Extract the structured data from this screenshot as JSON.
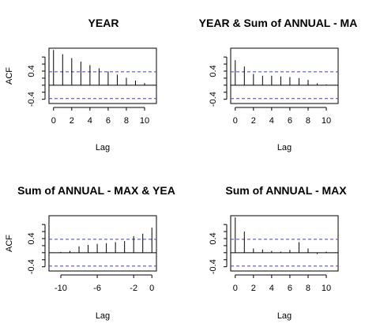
{
  "chart_data": [
    {
      "type": "bar",
      "title": "YEAR",
      "xlabel": "Lag",
      "ylabel": "ACF",
      "x_ticks": [
        "0",
        "2",
        "4",
        "6",
        "8",
        "10"
      ],
      "y_ticks": [
        "-0.4",
        "0.4"
      ],
      "xlim": [
        -0.5,
        11.3
      ],
      "ylim": [
        -0.52,
        1.05
      ],
      "confidence_bounds": [
        0.38,
        -0.38
      ],
      "lags": [
        0,
        1,
        2,
        3,
        4,
        5,
        6,
        7,
        8,
        9,
        10,
        11
      ],
      "values": [
        1.0,
        0.88,
        0.77,
        0.67,
        0.57,
        0.48,
        0.39,
        0.3,
        0.21,
        0.13,
        0.06,
        0.01
      ]
    },
    {
      "type": "bar",
      "title": "YEAR & Sum of ANNUAL - MA",
      "xlabel": "Lag",
      "ylabel": "",
      "x_ticks": [
        "0",
        "2",
        "4",
        "6",
        "8",
        "10"
      ],
      "y_ticks": [
        "-0.4",
        "0.4"
      ],
      "xlim": [
        -0.5,
        11.3
      ],
      "ylim": [
        -0.52,
        1.05
      ],
      "confidence_bounds": [
        0.38,
        -0.38
      ],
      "lags": [
        0,
        1,
        2,
        3,
        4,
        5,
        6,
        7,
        8,
        9,
        10,
        11
      ],
      "values": [
        0.71,
        0.53,
        0.32,
        0.27,
        0.27,
        0.25,
        0.23,
        0.2,
        0.15,
        0.05,
        0.02,
        0.01
      ]
    },
    {
      "type": "bar",
      "title": "Sum of ANNUAL - MAX & YEA",
      "xlabel": "Lag",
      "ylabel": "ACF",
      "x_ticks": [
        "-10",
        "-6",
        "-2",
        "0"
      ],
      "y_ticks": [
        "-0.4",
        "0.4"
      ],
      "xlim": [
        -11.3,
        0.5
      ],
      "ylim": [
        -0.52,
        1.05
      ],
      "confidence_bounds": [
        0.38,
        -0.38
      ],
      "lags": [
        -11,
        -10,
        -9,
        -8,
        -7,
        -6,
        -5,
        -4,
        -3,
        -2,
        -1,
        0
      ],
      "values": [
        0.01,
        0.02,
        0.05,
        0.18,
        0.22,
        0.25,
        0.27,
        0.3,
        0.33,
        0.47,
        0.54,
        0.71
      ]
    },
    {
      "type": "bar",
      "title": "Sum of ANNUAL - MAX",
      "xlabel": "Lag",
      "ylabel": "",
      "x_ticks": [
        "0",
        "2",
        "4",
        "6",
        "8",
        "10"
      ],
      "y_ticks": [
        "-0.4",
        "0.4"
      ],
      "xlim": [
        -0.5,
        11.3
      ],
      "ylim": [
        -0.52,
        1.05
      ],
      "confidence_bounds": [
        0.38,
        -0.38
      ],
      "lags": [
        0,
        1,
        2,
        3,
        4,
        5,
        6,
        7,
        8,
        9,
        10,
        11
      ],
      "values": [
        1.0,
        0.6,
        0.12,
        0.09,
        0.05,
        0.03,
        0.08,
        0.3,
        0.12,
        -0.04,
        0.03,
        0.01
      ]
    }
  ]
}
